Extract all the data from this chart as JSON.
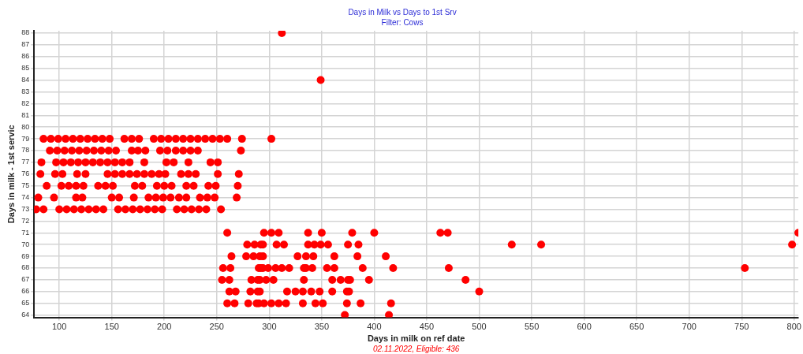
{
  "chart_data": {
    "type": "scatter",
    "title": "Days in Milk vs Days to 1st Srv",
    "subtitle": "Filter: Cows",
    "xlabel": "Days in milk on ref date",
    "ylabel": "Days in milk - 1st servic",
    "annotations": [
      "02.11.2022, Eligible: 436"
    ],
    "xlim": [
      76,
      804
    ],
    "ylim": [
      63.8,
      88.2
    ],
    "xticks": [
      100,
      150,
      200,
      250,
      300,
      350,
      400,
      450,
      500,
      550,
      600,
      650,
      700,
      750,
      800
    ],
    "yticks": [
      64,
      65,
      66,
      67,
      68,
      69,
      70,
      71,
      72,
      73,
      74,
      75,
      76,
      77,
      78,
      79,
      80,
      81,
      82,
      83,
      84,
      85,
      86,
      87,
      88
    ],
    "grid": true,
    "legend": false,
    "marker": "circle",
    "series": [
      {
        "color": "#ff0000",
        "x": [
          85,
          92,
          99,
          106,
          113,
          120,
          127,
          134,
          141,
          148,
          162,
          169,
          176,
          190,
          197,
          204,
          211,
          218,
          225,
          232,
          239,
          246,
          253,
          260,
          274,
          302,
          91,
          98,
          105,
          112,
          119,
          126,
          133,
          140,
          147,
          154,
          169,
          175,
          182,
          196,
          203,
          211,
          218,
          225,
          232,
          273,
          83,
          97,
          104,
          111,
          118,
          125,
          132,
          139,
          146,
          153,
          160,
          167,
          181,
          202,
          209,
          223,
          244,
          251,
          82,
          96,
          103,
          117,
          125,
          146,
          153,
          160,
          167,
          174,
          181,
          188,
          195,
          201,
          216,
          223,
          230,
          251,
          271,
          88,
          102,
          109,
          116,
          123,
          137,
          144,
          151,
          172,
          179,
          193,
          200,
          207,
          221,
          228,
          242,
          249,
          270,
          80,
          95,
          116,
          122,
          150,
          157,
          171,
          185,
          192,
          199,
          206,
          214,
          221,
          234,
          241,
          248,
          269,
          78,
          85,
          100,
          107,
          114,
          121,
          128,
          135,
          142,
          156,
          163,
          170,
          177,
          184,
          191,
          198,
          212,
          219,
          226,
          233,
          240,
          254,
          312,
          349,
          260,
          295,
          302,
          309,
          337,
          350,
          379,
          400,
          463,
          470,
          804,
          279,
          286,
          292,
          294,
          307,
          314,
          337,
          343,
          349,
          356,
          375,
          385,
          531,
          559,
          798,
          264,
          278,
          285,
          291,
          294,
          327,
          335,
          342,
          362,
          384,
          411,
          256,
          263,
          290,
          292,
          294,
          299,
          306,
          312,
          319,
          333,
          335,
          341,
          355,
          362,
          389,
          418,
          471,
          753,
          255,
          262,
          283,
          289,
          291,
          297,
          304,
          333,
          360,
          368,
          375,
          377,
          395,
          487,
          262,
          268,
          282,
          289,
          291,
          317,
          325,
          332,
          340,
          348,
          360,
          374,
          376,
          500,
          260,
          267,
          280,
          288,
          290,
          295,
          302,
          309,
          316,
          332,
          344,
          351,
          374,
          387,
          416,
          372,
          414
        ],
        "values": [
          79,
          79,
          79,
          79,
          79,
          79,
          79,
          79,
          79,
          79,
          79,
          79,
          79,
          79,
          79,
          79,
          79,
          79,
          79,
          79,
          79,
          79,
          79,
          79,
          79,
          79,
          78,
          78,
          78,
          78,
          78,
          78,
          78,
          78,
          78,
          78,
          78,
          78,
          78,
          78,
          78,
          78,
          78,
          78,
          78,
          78,
          77,
          77,
          77,
          77,
          77,
          77,
          77,
          77,
          77,
          77,
          77,
          77,
          77,
          77,
          77,
          77,
          77,
          77,
          76,
          76,
          76,
          76,
          76,
          76,
          76,
          76,
          76,
          76,
          76,
          76,
          76,
          76,
          76,
          76,
          76,
          76,
          76,
          75,
          75,
          75,
          75,
          75,
          75,
          75,
          75,
          75,
          75,
          75,
          75,
          75,
          75,
          75,
          75,
          75,
          75,
          74,
          74,
          74,
          74,
          74,
          74,
          74,
          74,
          74,
          74,
          74,
          74,
          74,
          74,
          74,
          74,
          74,
          73,
          73,
          73,
          73,
          73,
          73,
          73,
          73,
          73,
          73,
          73,
          73,
          73,
          73,
          73,
          73,
          73,
          73,
          73,
          73,
          73,
          73,
          88,
          84,
          71,
          71,
          71,
          71,
          71,
          71,
          71,
          71,
          71,
          71,
          71,
          70,
          70,
          70,
          70,
          70,
          70,
          70,
          70,
          70,
          70,
          70,
          70,
          70,
          70,
          70,
          69,
          69,
          69,
          69,
          69,
          69,
          69,
          69,
          69,
          69,
          69,
          68,
          68,
          68,
          68,
          68,
          68,
          68,
          68,
          68,
          68,
          68,
          68,
          68,
          68,
          68,
          68,
          68,
          68,
          67,
          67,
          67,
          67,
          67,
          67,
          67,
          67,
          67,
          67,
          67,
          67,
          67,
          67,
          66,
          66,
          66,
          66,
          66,
          66,
          66,
          66,
          66,
          66,
          66,
          66,
          66,
          66,
          65,
          65,
          65,
          65,
          65,
          65,
          65,
          65,
          65,
          65,
          65,
          65,
          65,
          65,
          65,
          64,
          64
        ]
      }
    ]
  }
}
